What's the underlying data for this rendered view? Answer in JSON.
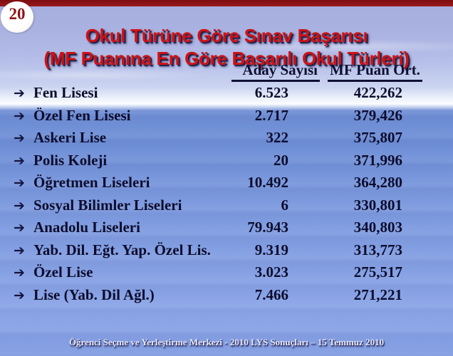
{
  "slide": {
    "number": "20",
    "title_line1": "Okul Türüne Göre Sınav Başarısı",
    "title_line2": "(MF Puanına En Göre Başarılı Okul Türleri)",
    "footer": "Öğrenci Seçme ve Yerleştirme Merkezi - 2010 LYS Sonuçları – 15 Temmuz 2010"
  },
  "table": {
    "bullet": "➔",
    "columns": [
      "Aday Sayısı",
      "MF Puan Ort."
    ],
    "rows": [
      {
        "label": "Fen Lisesi",
        "aday": "6.523",
        "mf": "422,262"
      },
      {
        "label": "Özel Fen Lisesi",
        "aday": "2.717",
        "mf": "379,426"
      },
      {
        "label": "Askeri Lise",
        "aday": "322",
        "mf": "375,807"
      },
      {
        "label": "Polis Koleji",
        "aday": "20",
        "mf": "371,996"
      },
      {
        "label": "Öğretmen Liseleri",
        "aday": "10.492",
        "mf": "364,280"
      },
      {
        "label": "Sosyal Bilimler Liseleri",
        "aday": "6",
        "mf": "330,801"
      },
      {
        "label": "Anadolu Liseleri",
        "aday": "79.943",
        "mf": "340,803"
      },
      {
        "label": "Yab. Dil. Eğt. Yap. Özel Lis.",
        "aday": "9.319",
        "mf": "313,773"
      },
      {
        "label": "Özel Lise",
        "aday": "3.023",
        "mf": "275,517"
      },
      {
        "label": "Lise (Yab. Dil Ağl.)",
        "aday": "7.466",
        "mf": "271,221"
      }
    ]
  },
  "colors": {
    "title_red": "#d01113",
    "top_bar_red": "#8a1214",
    "text_navy": "#0c0c2c",
    "footer_text": "#e9e9f6",
    "sky_blue": "#a6aedd",
    "water_blue": "#7f9ce0"
  }
}
